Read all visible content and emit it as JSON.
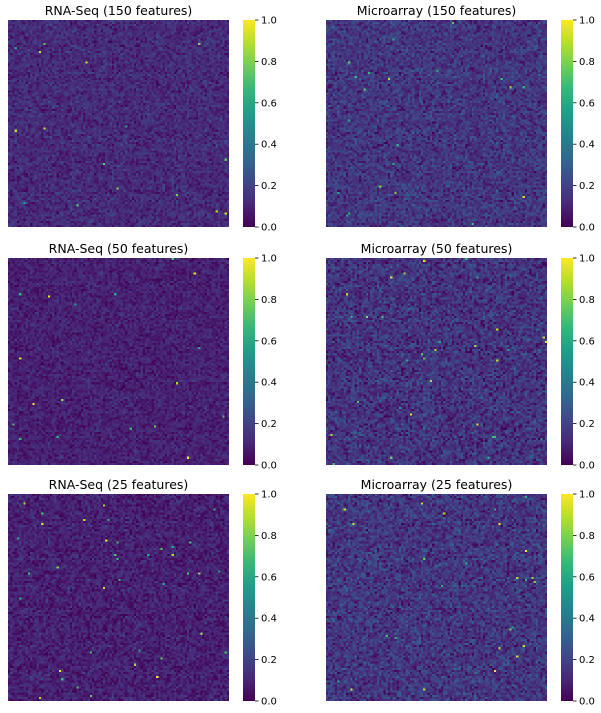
{
  "figure": {
    "colormap": "viridis",
    "colormap_stops": [
      "#440154",
      "#482878",
      "#3e4989",
      "#31688e",
      "#26828e",
      "#1f9e89",
      "#35b779",
      "#6ece58",
      "#b5de2b",
      "#fde725"
    ]
  },
  "chart_data": [
    {
      "type": "heatmap",
      "title": "RNA-Seq (150 features)",
      "xlabel": "",
      "ylabel": "",
      "x_tick_labels": [],
      "y_tick_labels": [],
      "value_range": [
        0,
        1
      ],
      "grid_size": 100,
      "value_distribution": {
        "mean": 0.12,
        "spread": 0.07,
        "bright_fraction": 0.002
      },
      "colorbar": {
        "ticks": [
          "0.0",
          "0.2",
          "0.4",
          "0.6",
          "0.8",
          "1.0"
        ]
      }
    },
    {
      "type": "heatmap",
      "title": "Microarray (150 features)",
      "xlabel": "",
      "ylabel": "",
      "x_tick_labels": [],
      "y_tick_labels": [],
      "value_range": [
        0,
        1
      ],
      "grid_size": 100,
      "value_distribution": {
        "mean": 0.16,
        "spread": 0.09,
        "bright_fraction": 0.002
      },
      "colorbar": {
        "ticks": [
          "0.0",
          "0.2",
          "0.4",
          "0.6",
          "0.8",
          "1.0"
        ]
      }
    },
    {
      "type": "heatmap",
      "title": "RNA-Seq (50 features)",
      "xlabel": "",
      "ylabel": "",
      "x_tick_labels": [],
      "y_tick_labels": [],
      "value_range": [
        0,
        1
      ],
      "grid_size": 100,
      "value_distribution": {
        "mean": 0.09,
        "spread": 0.06,
        "bright_fraction": 0.002
      },
      "colorbar": {
        "ticks": [
          "0.0",
          "0.2",
          "0.4",
          "0.6",
          "0.8",
          "1.0"
        ]
      }
    },
    {
      "type": "heatmap",
      "title": "Microarray (50 features)",
      "xlabel": "",
      "ylabel": "",
      "x_tick_labels": [],
      "y_tick_labels": [],
      "value_range": [
        0,
        1
      ],
      "grid_size": 100,
      "value_distribution": {
        "mean": 0.15,
        "spread": 0.1,
        "bright_fraction": 0.004
      },
      "colorbar": {
        "ticks": [
          "0.0",
          "0.2",
          "0.4",
          "0.6",
          "0.8",
          "1.0"
        ]
      }
    },
    {
      "type": "heatmap",
      "title": "RNA-Seq (25 features)",
      "xlabel": "",
      "ylabel": "",
      "x_tick_labels": [],
      "y_tick_labels": [],
      "value_range": [
        0,
        1
      ],
      "grid_size": 100,
      "value_distribution": {
        "mean": 0.09,
        "spread": 0.07,
        "bright_fraction": 0.003
      },
      "colorbar": {
        "ticks": [
          "0.0",
          "0.2",
          "0.4",
          "0.6",
          "0.8",
          "1.0"
        ]
      }
    },
    {
      "type": "heatmap",
      "title": "Microarray (25 features)",
      "xlabel": "",
      "ylabel": "",
      "x_tick_labels": [],
      "y_tick_labels": [],
      "value_range": [
        0,
        1
      ],
      "grid_size": 100,
      "value_distribution": {
        "mean": 0.16,
        "spread": 0.1,
        "bright_fraction": 0.003
      },
      "colorbar": {
        "ticks": [
          "0.0",
          "0.2",
          "0.4",
          "0.6",
          "0.8",
          "1.0"
        ]
      }
    }
  ]
}
